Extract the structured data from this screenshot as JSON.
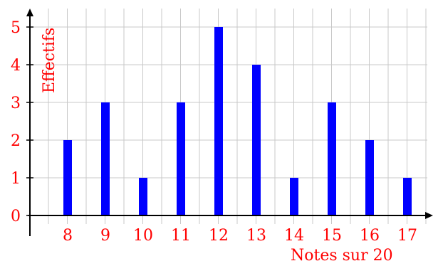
{
  "chart_data": {
    "type": "bar",
    "categories": [
      "8",
      "9",
      "10",
      "11",
      "12",
      "13",
      "14",
      "15",
      "16",
      "17"
    ],
    "values": [
      2,
      3,
      1,
      3,
      5,
      4,
      1,
      3,
      2,
      1
    ],
    "xlabel": "Notes sur 20",
    "ylabel": "Effectifs",
    "yticks": [
      "0",
      "1",
      "2",
      "3",
      "4",
      "5"
    ],
    "ylim": [
      0,
      5.5
    ],
    "grid": true,
    "bar_color": "#0000ff",
    "label_color": "#ff0000",
    "grid_color": "#c8c8c8",
    "axis_color": "#000000"
  }
}
